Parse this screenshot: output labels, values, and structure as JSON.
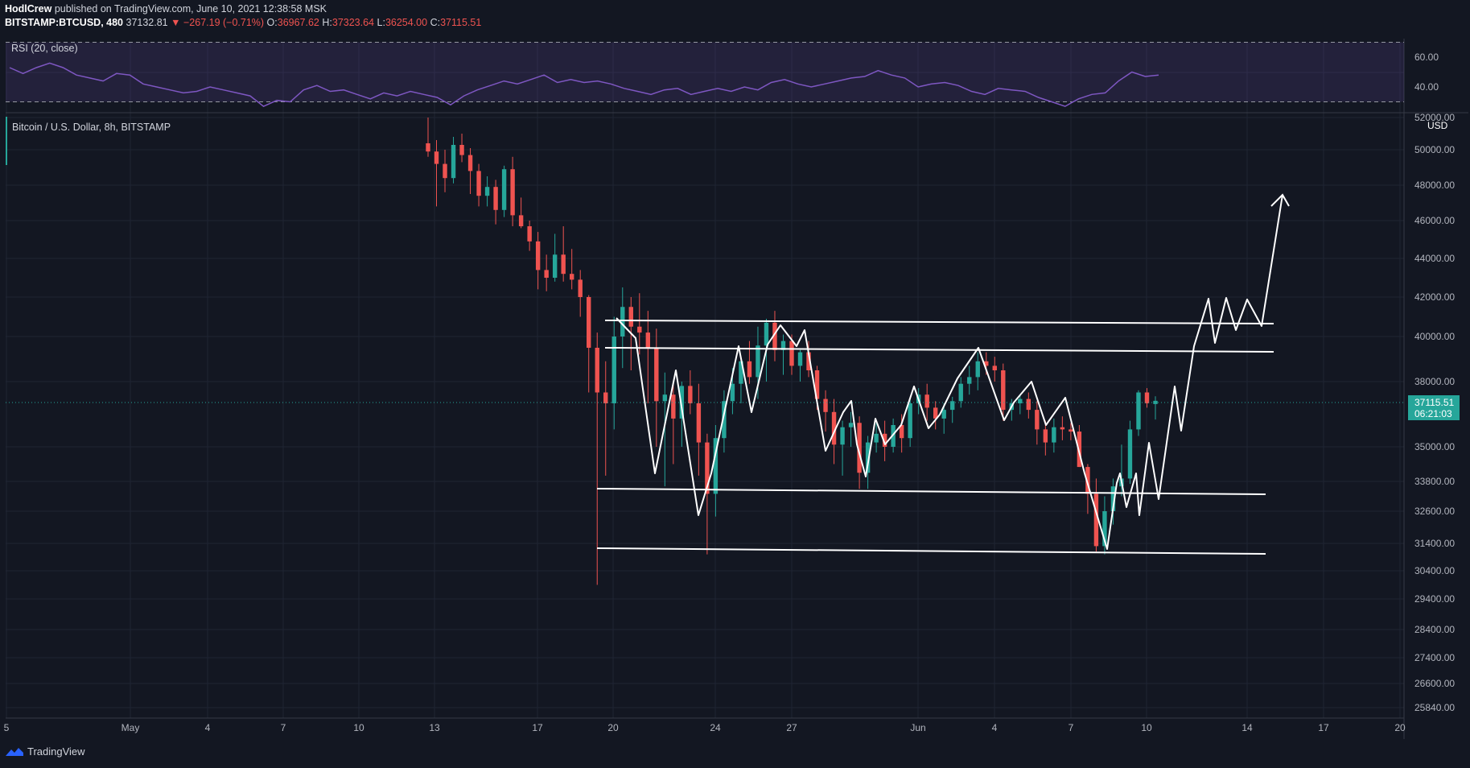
{
  "header": {
    "author": "HodlCrew",
    "published_text": "published on TradingView.com, June 10, 2021 12:38:58 MSK"
  },
  "symbol_bar": {
    "symbol": "BITSTAMP:BTCUSD, 480",
    "last": "37132.81",
    "arrow": "▼",
    "change": "−267.19 (−0.71%)",
    "open_label": "O:",
    "open": "36967.62",
    "high_label": "H:",
    "high": "37323.64",
    "low_label": "L:",
    "low": "36254.00",
    "close_label": "C:",
    "close": "37115.51"
  },
  "rsi_panel": {
    "legend": "RSI (20, close)",
    "ticks": [
      "60.00",
      "40.00"
    ]
  },
  "price_panel": {
    "legend": "Bitcoin / U.S. Dollar, 8h, BITSTAMP",
    "currency": "USD",
    "price_ticks": [
      "52000.00",
      "50000.00",
      "48000.00",
      "46000.00",
      "44000.00",
      "42000.00",
      "40000.00",
      "38000.00",
      "35000.00",
      "33800.00",
      "32600.00",
      "31400.00",
      "30400.00",
      "29400.00",
      "28400.00",
      "27400.00",
      "26600.00",
      "25840.00"
    ],
    "last_price_label": "37115.51",
    "countdown_label": "06:21:03"
  },
  "time_axis": {
    "labels": [
      "5",
      "May",
      "4",
      "7",
      "10",
      "13",
      "17",
      "20",
      "24",
      "27",
      "Jun",
      "4",
      "7",
      "10",
      "14",
      "17",
      "20"
    ]
  },
  "footer": {
    "brand": "TradingView"
  },
  "colors": {
    "background": "#131722",
    "up": "#26a69a",
    "down": "#ef5350",
    "rsi": "#7e57c2",
    "drawing": "#ffffff"
  },
  "chart_data": {
    "type": "candlestick",
    "series": [
      {
        "name": "Bitcoin / U.S. Dollar, 8h, BITSTAMP",
        "values": [
          [
            50400,
            52000,
            49600,
            49900
          ],
          [
            49900,
            50600,
            46800,
            49200
          ],
          [
            49200,
            50000,
            47600,
            48400
          ],
          [
            48400,
            50800,
            48100,
            50300
          ],
          [
            50300,
            51000,
            49300,
            49700
          ],
          [
            49700,
            50100,
            47500,
            48800
          ],
          [
            48800,
            49200,
            46800,
            47400
          ],
          [
            47400,
            48500,
            46800,
            47900
          ],
          [
            47900,
            48300,
            45800,
            46600
          ],
          [
            46600,
            49100,
            46200,
            48900
          ],
          [
            48900,
            49600,
            45700,
            46300
          ],
          [
            46300,
            47300,
            45600,
            45700
          ],
          [
            45700,
            46000,
            44400,
            44900
          ],
          [
            44900,
            45400,
            42400,
            43400
          ],
          [
            43400,
            44200,
            42300,
            43000
          ],
          [
            43000,
            45300,
            42800,
            44200
          ],
          [
            44200,
            45700,
            42800,
            43200
          ],
          [
            43200,
            44500,
            42400,
            42900
          ],
          [
            42900,
            43400,
            41000,
            42000
          ],
          [
            42000,
            42100,
            37500,
            39500
          ],
          [
            39500,
            40200,
            29900,
            37500
          ],
          [
            37500,
            38900,
            34000,
            37000
          ],
          [
            37000,
            41000,
            35800,
            40000
          ],
          [
            40000,
            42500,
            38600,
            41500
          ],
          [
            41500,
            42000,
            38500,
            40500
          ],
          [
            40500,
            42200,
            39200,
            40200
          ],
          [
            40200,
            41300,
            37000,
            39500
          ],
          [
            39500,
            40400,
            35000,
            37100
          ],
          [
            37100,
            38400,
            33600,
            37400
          ],
          [
            37400,
            38000,
            34400,
            36300
          ],
          [
            36300,
            38000,
            35000,
            37800
          ],
          [
            37800,
            38500,
            36500,
            37000
          ],
          [
            37000,
            37900,
            34000,
            35200
          ],
          [
            35200,
            35600,
            31000,
            33300
          ],
          [
            33300,
            36000,
            32400,
            35400
          ],
          [
            35400,
            37600,
            34800,
            37100
          ],
          [
            37100,
            38600,
            36500,
            37900
          ],
          [
            37900,
            39000,
            37000,
            38900
          ],
          [
            38900,
            39800,
            37900,
            38200
          ],
          [
            38200,
            40500,
            37200,
            39600
          ],
          [
            39600,
            40900,
            38000,
            40700
          ],
          [
            40700,
            41300,
            38900,
            39400
          ],
          [
            39400,
            40100,
            38300,
            39800
          ],
          [
            39800,
            40100,
            38300,
            38700
          ],
          [
            38700,
            39400,
            38000,
            39300
          ],
          [
            39300,
            39800,
            38200,
            38500
          ],
          [
            38500,
            38700,
            36700,
            37200
          ],
          [
            37200,
            37600,
            35700,
            36600
          ],
          [
            36600,
            37200,
            34400,
            35100
          ],
          [
            35100,
            36200,
            34000,
            35900
          ],
          [
            35900,
            36600,
            35000,
            36100
          ],
          [
            36100,
            36400,
            33500,
            34100
          ],
          [
            34100,
            35500,
            33500,
            35200
          ],
          [
            35200,
            36100,
            34800,
            35600
          ],
          [
            35600,
            36200,
            34500,
            35000
          ],
          [
            35000,
            36300,
            34800,
            36000
          ],
          [
            36000,
            36500,
            34800,
            35400
          ],
          [
            35400,
            37200,
            35000,
            37000
          ],
          [
            37000,
            37700,
            36500,
            37400
          ],
          [
            37400,
            37900,
            36200,
            36800
          ],
          [
            36800,
            37100,
            35800,
            36300
          ],
          [
            36300,
            37000,
            35600,
            36700
          ],
          [
            36700,
            37300,
            36100,
            37100
          ],
          [
            37100,
            38200,
            36800,
            37900
          ],
          [
            37900,
            38700,
            37400,
            38200
          ],
          [
            38200,
            39300,
            37600,
            38900
          ],
          [
            38900,
            39300,
            38300,
            38700
          ],
          [
            38700,
            39100,
            38000,
            38500
          ],
          [
            38500,
            38800,
            36200,
            36700
          ],
          [
            36700,
            37200,
            36200,
            37000
          ],
          [
            37000,
            37400,
            36500,
            37200
          ],
          [
            37200,
            37500,
            36300,
            36700
          ],
          [
            36700,
            37100,
            35100,
            35800
          ],
          [
            35800,
            36200,
            34700,
            35200
          ],
          [
            35200,
            36300,
            34800,
            35900
          ],
          [
            35900,
            36400,
            35300,
            35800
          ],
          [
            35800,
            36100,
            35300,
            35700
          ],
          [
            35700,
            36000,
            34300,
            34300
          ],
          [
            34300,
            34400,
            32500,
            33300
          ],
          [
            33300,
            33900,
            31100,
            31300
          ],
          [
            31300,
            33200,
            31000,
            32600
          ],
          [
            32600,
            33900,
            32100,
            33600
          ],
          [
            33600,
            35100,
            33200,
            33900
          ],
          [
            33900,
            36200,
            33700,
            35800
          ],
          [
            35800,
            37600,
            35500,
            37500
          ],
          [
            37500,
            37700,
            36800,
            37000
          ],
          [
            36967.62,
            37323.64,
            36254.0,
            37115.51
          ]
        ]
      }
    ],
    "rsi": {
      "name": "RSI (20, close)",
      "ticks": [
        60,
        40
      ],
      "bands": [
        70,
        30
      ],
      "values": [
        53,
        49,
        53,
        56,
        53,
        48,
        46,
        44,
        49,
        48,
        42,
        40,
        38,
        36,
        37,
        40,
        38,
        36,
        34,
        27,
        31,
        30,
        38,
        41,
        37,
        38,
        35,
        32,
        36,
        34,
        37,
        35,
        33,
        28,
        34,
        38,
        41,
        44,
        42,
        45,
        48,
        43,
        45,
        43,
        44,
        42,
        39,
        37,
        35,
        38,
        39,
        35,
        37,
        39,
        37,
        40,
        38,
        43,
        45,
        42,
        40,
        42,
        44,
        46,
        47,
        51,
        48,
        46,
        40,
        42,
        43,
        41,
        37,
        35,
        39,
        38,
        37,
        33,
        30,
        27,
        32,
        35,
        36,
        44,
        50,
        47,
        48
      ]
    },
    "time_axis_labels": [
      "5",
      "May",
      "4",
      "7",
      "10",
      "13",
      "17",
      "20",
      "24",
      "27",
      "Jun",
      "4",
      "7",
      "10",
      "14",
      "17",
      "20"
    ]
  }
}
